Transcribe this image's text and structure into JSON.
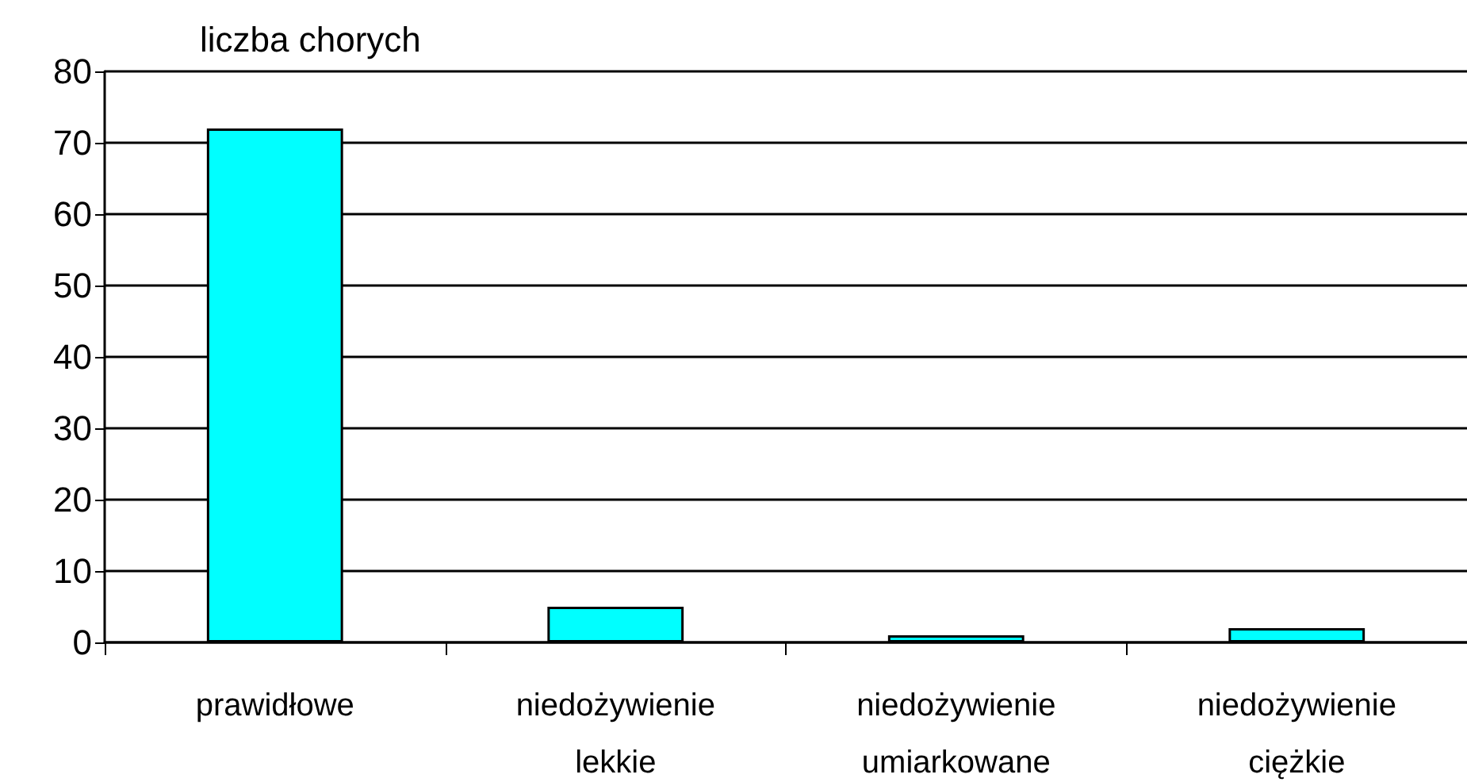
{
  "chart_data": {
    "type": "bar",
    "ylabel": "liczba chorych",
    "categories": [
      "prawidłowe",
      "niedożywienie lekkie",
      "niedożywienie umiarkowane",
      "niedożywienie ciężkie"
    ],
    "values": [
      72,
      5,
      1,
      2
    ],
    "color": "#00ffff",
    "ylim": [
      0,
      80
    ],
    "yticks": [
      0,
      10,
      20,
      30,
      40,
      50,
      60,
      70,
      80
    ],
    "grid": "y"
  }
}
